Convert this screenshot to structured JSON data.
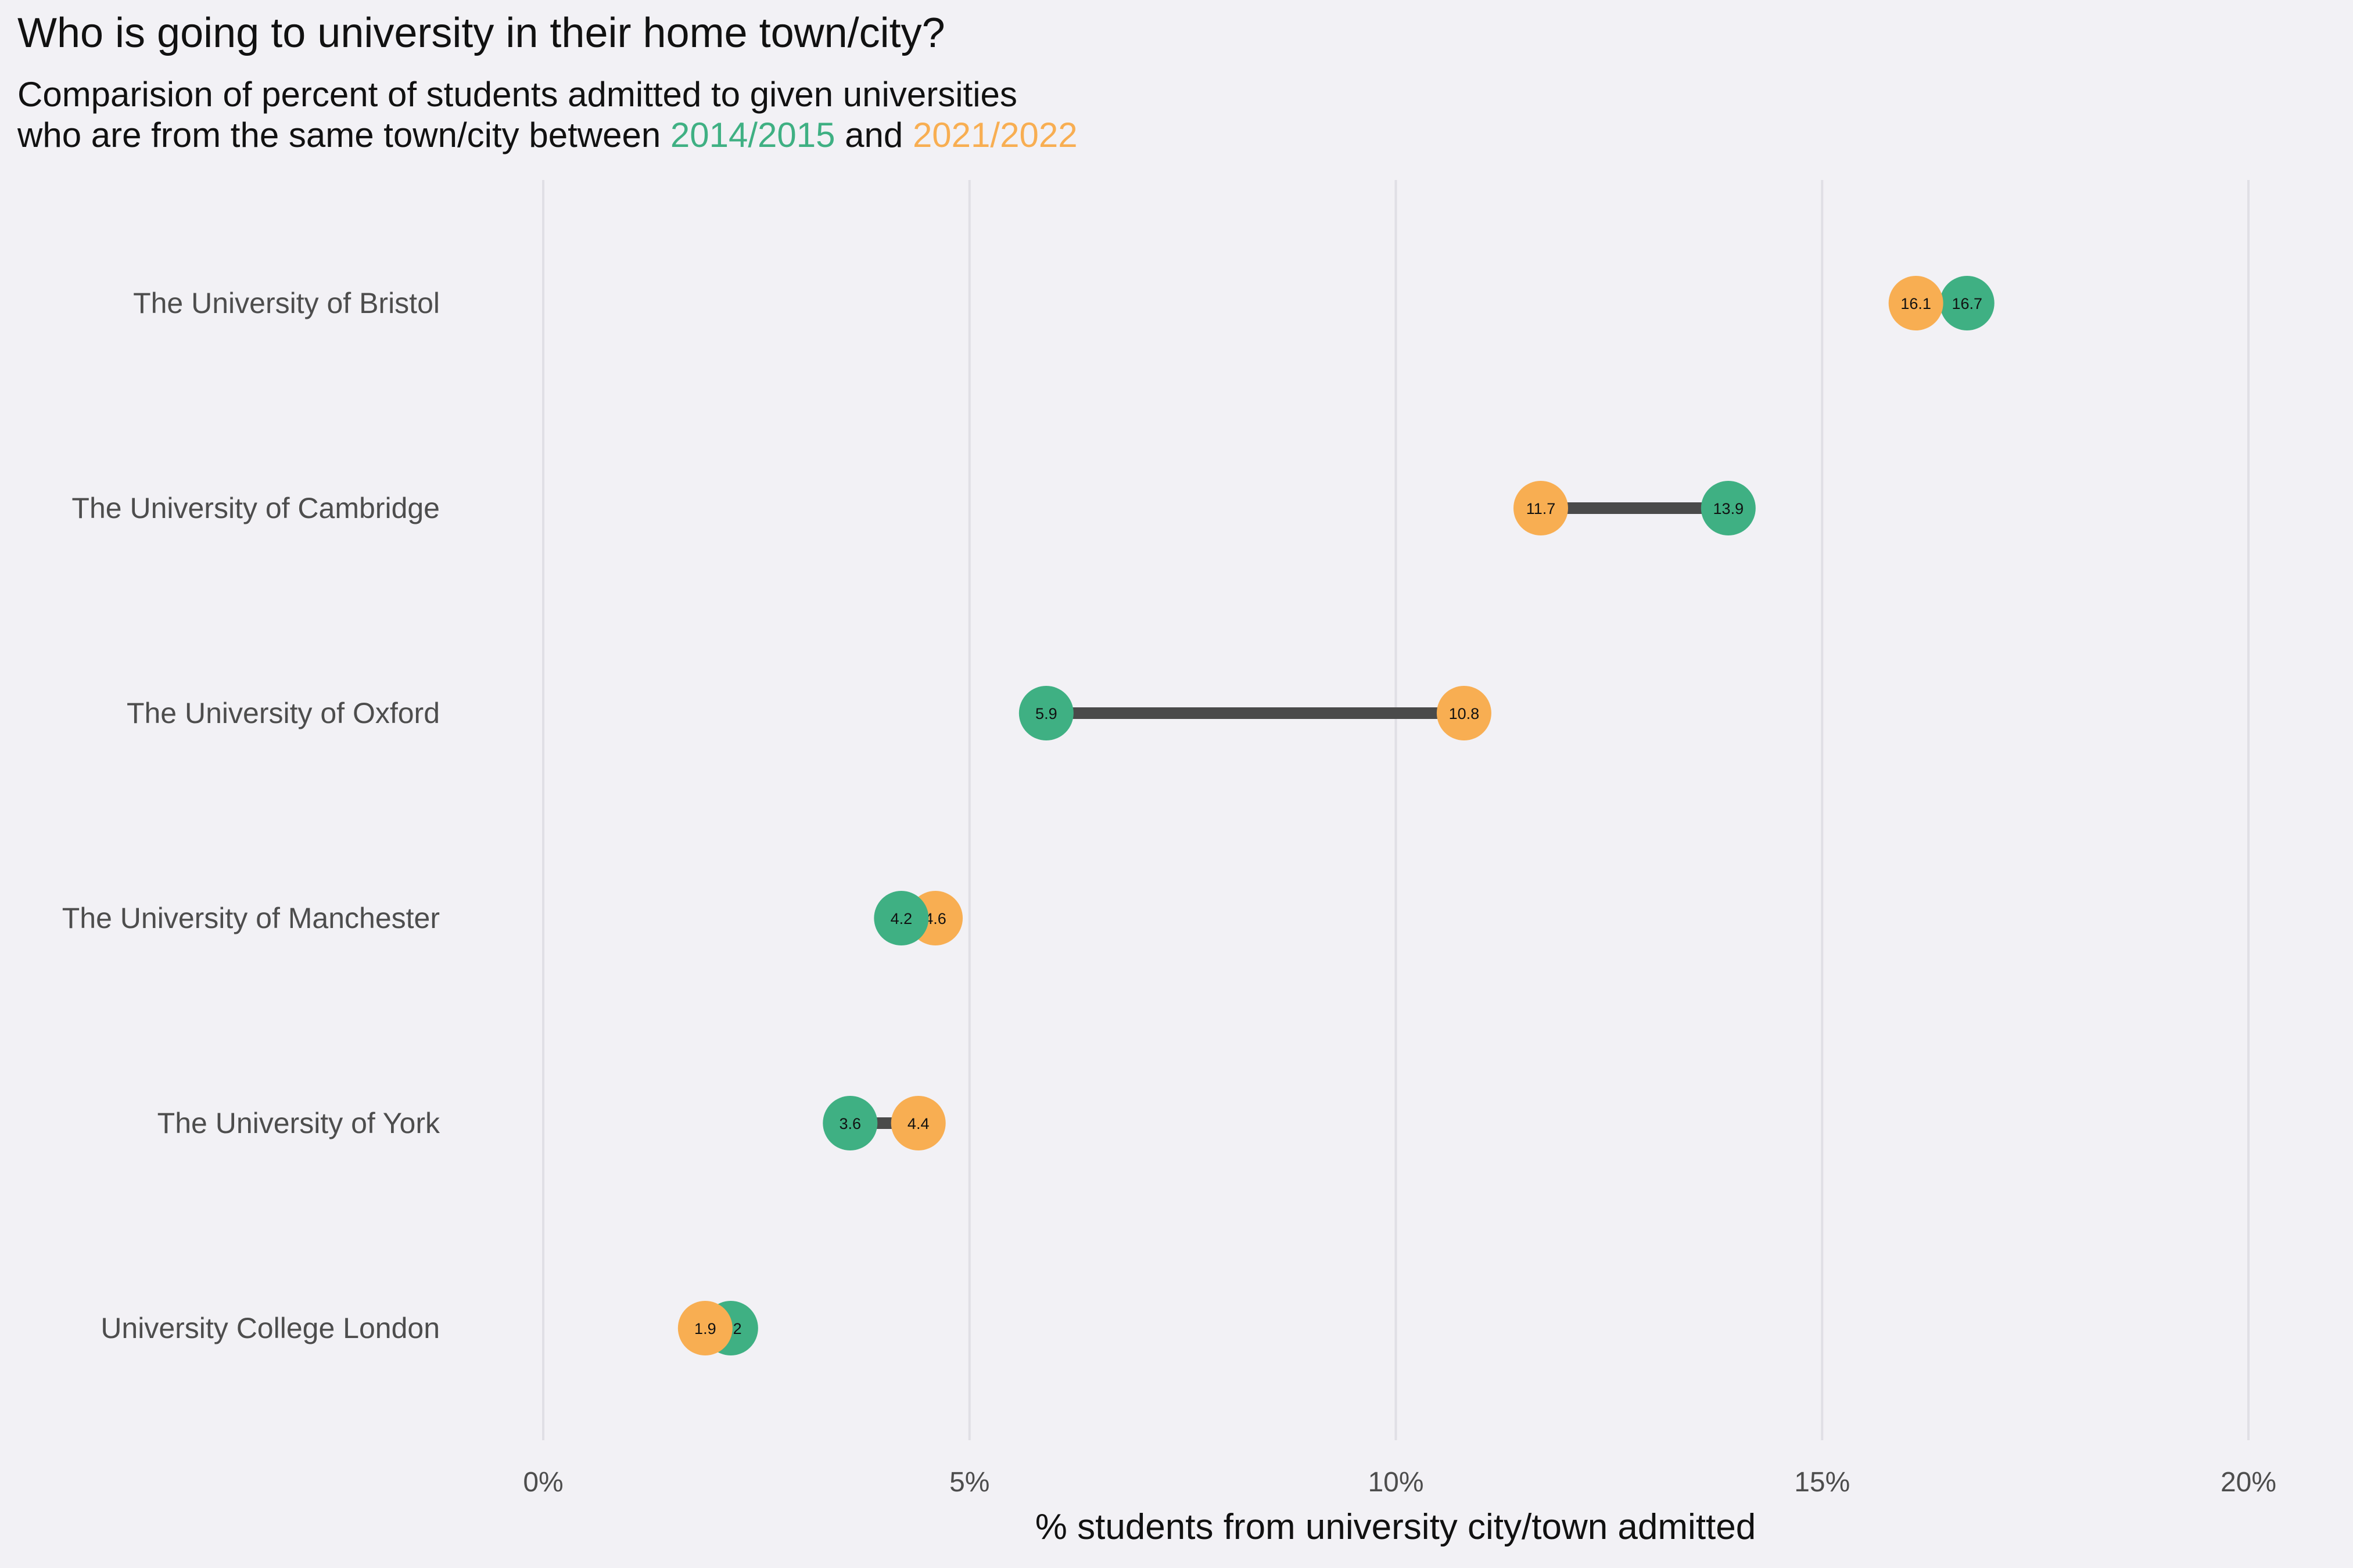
{
  "chart_data": {
    "type": "dumbbell",
    "title": "Who is going to university in their home town/city?",
    "subtitle_line1": "Comparision of percent of students admitted to given universities",
    "subtitle_line2_prefix": "who are from the same town/city between ",
    "subtitle_and": " and ",
    "xlabel": "% students from university city/town admitted",
    "xlim": [
      0,
      20
    ],
    "xticks": [
      0,
      5,
      10,
      15,
      20
    ],
    "xtick_labels": [
      "0%",
      "5%",
      "10%",
      "15%",
      "20%"
    ],
    "grid": "vertical",
    "categories": [
      "The University of Bristol",
      "The University of Cambridge",
      "The University of Oxford",
      "The University of Manchester",
      "The University of York",
      "University College London"
    ],
    "series": [
      {
        "name": "2014/2015",
        "color": "#3fb083",
        "values": [
          16.7,
          13.9,
          5.9,
          4.2,
          3.6,
          2.2
        ]
      },
      {
        "name": "2021/2022",
        "color": "#f8ae52",
        "values": [
          16.1,
          11.7,
          10.8,
          4.6,
          4.4,
          1.9
        ]
      }
    ],
    "connector_color": "#4a4a4a"
  }
}
